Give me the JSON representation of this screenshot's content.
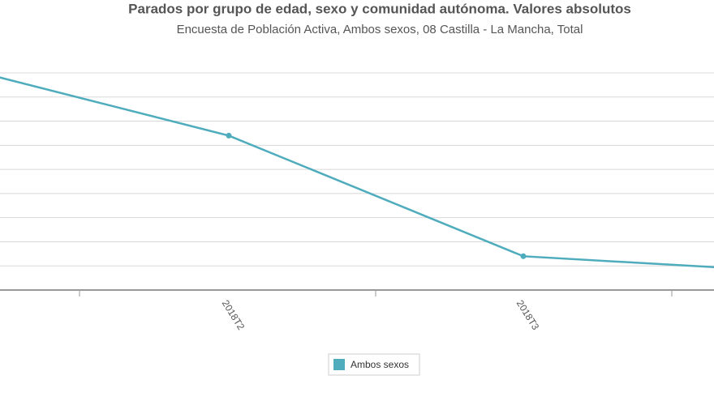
{
  "chart_data": {
    "type": "line",
    "title": "Parados por grupo de edad, sexo y comunidad autónoma. Valores absolutos",
    "subtitle": "Encuesta de Población Activa, Ambos sexos, 08 Castilla - La Mancha, Total",
    "categories": [
      null,
      "2018T2",
      "2018T3",
      null
    ],
    "series": [
      {
        "name": "Ambos sexos",
        "color": "#4eacbd",
        "values": [
          9.5,
          6.4,
          1.4,
          0.7
        ]
      }
    ],
    "ylim": [
      0,
      9
    ],
    "yticks": [
      0,
      1,
      2,
      3,
      4,
      5,
      6,
      7,
      8,
      9
    ],
    "grid": true
  }
}
